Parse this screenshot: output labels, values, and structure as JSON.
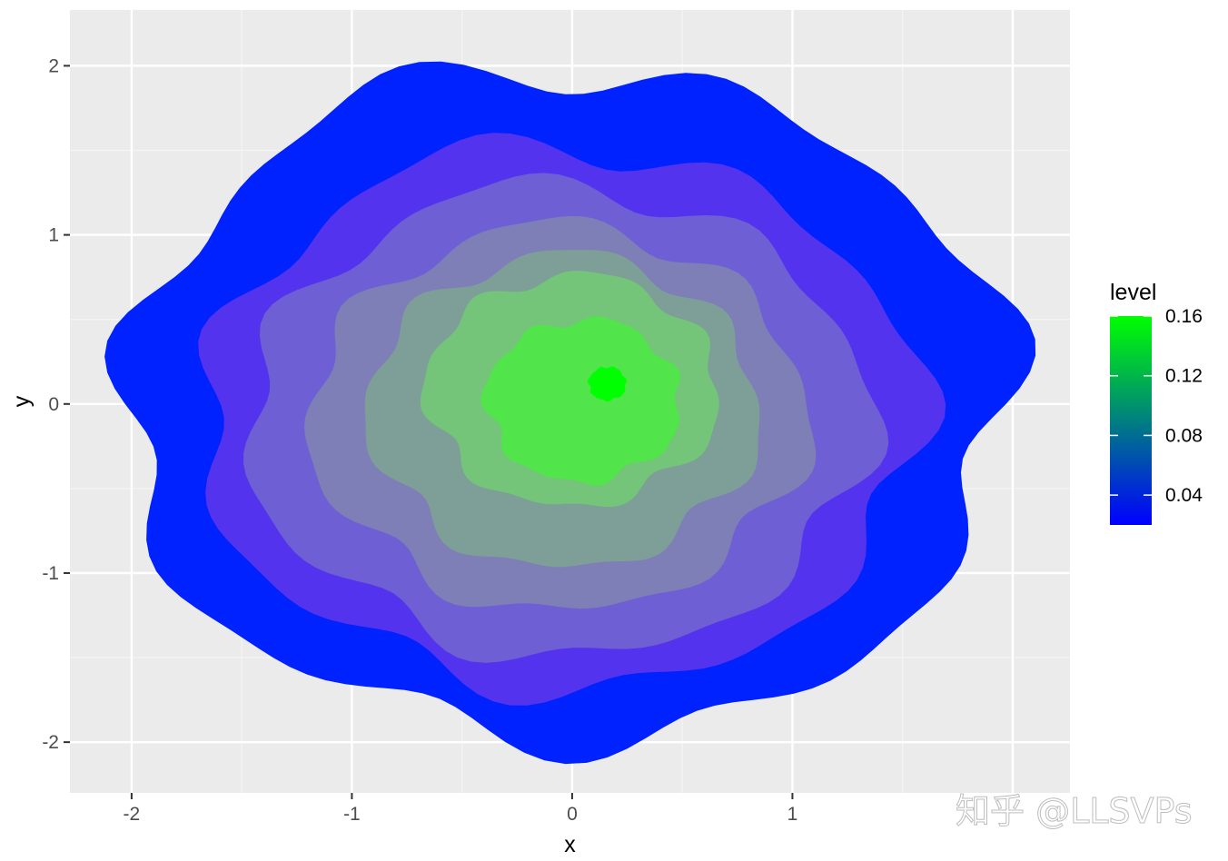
{
  "chart_data": {
    "type": "contour-filled",
    "xlabel": "x",
    "ylabel": "y",
    "xlim": [
      -2.28,
      2.26
    ],
    "ylim": [
      -2.3,
      2.33
    ],
    "x_ticks": [
      -2,
      -1,
      0,
      1
    ],
    "y_ticks": [
      -2,
      -1,
      0,
      1,
      2
    ],
    "grid": true,
    "legend": {
      "title": "level",
      "position": "right",
      "range": [
        0.02,
        0.16
      ],
      "ticks": [
        0.04,
        0.08,
        0.12,
        0.16
      ],
      "tick_labels": [
        "0.04",
        "0.08",
        "0.12",
        "0.16"
      ],
      "color_low": "#0000ff",
      "color_high": "#00ff00"
    },
    "levels": [
      {
        "level": 0.02,
        "color": "#0022ff",
        "rx": 2.0,
        "ry": 1.98,
        "cx": -0.03,
        "cy": 0.0
      },
      {
        "level": 0.04,
        "color": "#5433ee",
        "rx": 1.62,
        "ry": 1.6,
        "cx": -0.05,
        "cy": -0.08
      },
      {
        "level": 0.06,
        "color": "#6e5fd4",
        "rx": 1.4,
        "ry": 1.38,
        "cx": -0.06,
        "cy": -0.1
      },
      {
        "level": 0.08,
        "color": "#7e7fb6",
        "rx": 1.12,
        "ry": 1.13,
        "cx": -0.06,
        "cy": -0.08
      },
      {
        "level": 0.1,
        "color": "#7e9f98",
        "rx": 0.88,
        "ry": 0.92,
        "cx": -0.04,
        "cy": -0.04
      },
      {
        "level": 0.12,
        "color": "#74c47a",
        "rx": 0.66,
        "ry": 0.68,
        "cx": 0.0,
        "cy": 0.08
      },
      {
        "level": 0.14,
        "color": "#52e44b",
        "rx": 0.44,
        "ry": 0.48,
        "cx": 0.05,
        "cy": 0.02
      },
      {
        "level": 0.16,
        "color": "#00ff00",
        "rx": 0.085,
        "ry": 0.1,
        "cx": 0.16,
        "cy": 0.12
      }
    ]
  },
  "watermark": "知乎 @LLSVPs",
  "colors": {
    "panel_bg": "#ebebeb",
    "grid_major": "#ffffff",
    "grid_minor": "#f5f5f5"
  }
}
